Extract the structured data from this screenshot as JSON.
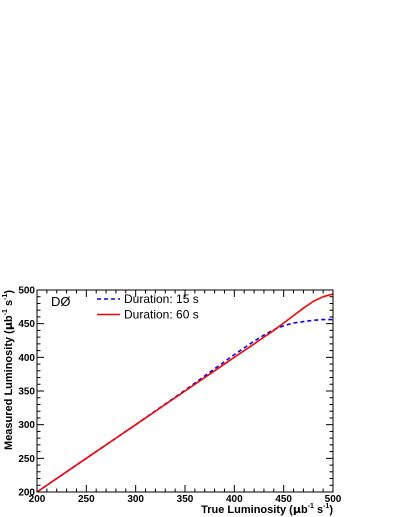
{
  "chart_data": {
    "type": "line",
    "experiment_label": "DØ",
    "xlabel": {
      "prefix": "True Luminosity (",
      "mu": "μ",
      "b": "b",
      "sup1": "-1",
      "s": " s",
      "sup2": "-1",
      "suffix": ")"
    },
    "ylabel": {
      "prefix": "Measured Luminosity (",
      "mu": "μ",
      "b": "b",
      "sup1": "-1",
      "s": " s",
      "sup2": "-1",
      "suffix": ")"
    },
    "xlim": [
      200,
      500
    ],
    "ylim": [
      200,
      500
    ],
    "xticks": [
      200,
      250,
      300,
      350,
      400,
      450,
      500
    ],
    "yticks": [
      200,
      250,
      300,
      350,
      400,
      450,
      500
    ],
    "legend_position": "top-left",
    "series": [
      {
        "name": "Duration: 15 s",
        "color": "#0000ff",
        "style": "dashed",
        "x": [
          200,
          250,
          300,
          350,
          380,
          400,
          420,
          430,
          440,
          450,
          460,
          470,
          480,
          490,
          500
        ],
        "y": [
          200,
          250,
          300,
          351,
          383,
          404,
          424,
          433,
          441,
          447,
          451,
          453,
          455,
          456,
          456
        ]
      },
      {
        "name": "Duration: 60 s",
        "color": "#ff0000",
        "style": "solid",
        "x": [
          200,
          250,
          300,
          350,
          380,
          400,
          420,
          430,
          440,
          450,
          460,
          470,
          480,
          490,
          500
        ],
        "y": [
          200,
          250,
          300,
          350,
          380,
          400,
          420,
          430,
          440,
          451,
          462,
          473,
          483,
          490,
          494
        ]
      }
    ]
  }
}
